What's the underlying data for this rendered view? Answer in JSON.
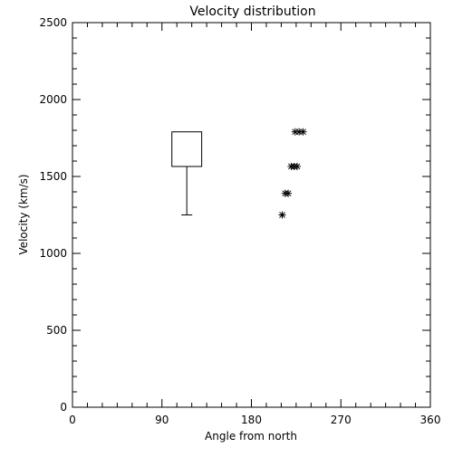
{
  "chart_data": {
    "type": "scatter",
    "title": "Velocity distribution",
    "xlabel": "Angle from north",
    "ylabel": "Velocity (km/s)",
    "xlim": [
      0,
      360
    ],
    "ylim": [
      0,
      2500
    ],
    "x_ticks": [
      0,
      90,
      180,
      270,
      360
    ],
    "y_ticks": [
      0,
      500,
      1000,
      1500,
      2000,
      2500
    ],
    "grid": false,
    "box": {
      "x_left": 100,
      "x_right": 130,
      "y_low": 1565,
      "y_high": 1790,
      "whisker_low": 1250
    },
    "points": [
      {
        "x": 211,
        "y": 1250
      },
      {
        "x": 214,
        "y": 1390
      },
      {
        "x": 217,
        "y": 1390
      },
      {
        "x": 220,
        "y": 1565
      },
      {
        "x": 223,
        "y": 1565
      },
      {
        "x": 226,
        "y": 1565
      },
      {
        "x": 224,
        "y": 1790
      },
      {
        "x": 228,
        "y": 1790
      },
      {
        "x": 232,
        "y": 1790
      }
    ]
  }
}
